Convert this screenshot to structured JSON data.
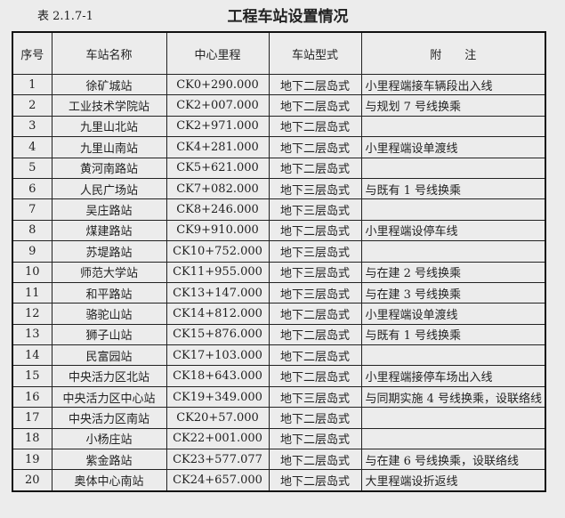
{
  "caption": "表 2.1.7-1",
  "title": "工程车站设置情况",
  "headers": [
    "序号",
    "车站名称",
    "中心里程",
    "车站型式",
    "附　　注"
  ],
  "rows": [
    [
      "1",
      "徐矿城站",
      "CK0+290.000",
      "地下二层岛式",
      "小里程端接车辆段出入线"
    ],
    [
      "2",
      "工业技术学院站",
      "CK2+007.000",
      "地下二层岛式",
      "与规划 7 号线换乘"
    ],
    [
      "3",
      "九里山北站",
      "CK2+971.000",
      "地下二层岛式",
      ""
    ],
    [
      "4",
      "九里山南站",
      "CK4+281.000",
      "地下二层岛式",
      "小里程端设单渡线"
    ],
    [
      "5",
      "黄河南路站",
      "CK5+621.000",
      "地下二层岛式",
      ""
    ],
    [
      "6",
      "人民广场站",
      "CK7+082.000",
      "地下三层岛式",
      "与既有 1 号线换乘"
    ],
    [
      "7",
      "吴庄路站",
      "CK8+246.000",
      "地下三层岛式",
      ""
    ],
    [
      "8",
      "煤建路站",
      "CK9+910.000",
      "地下二层岛式",
      "小里程端设停车线"
    ],
    [
      "9",
      "苏堤路站",
      "CK10+752.000",
      "地下三层岛式",
      ""
    ],
    [
      "10",
      "师范大学站",
      "CK11+955.000",
      "地下三层岛式",
      "与在建 2 号线换乘"
    ],
    [
      "11",
      "和平路站",
      "CK13+147.000",
      "地下三层岛式",
      "与在建 3 号线换乘"
    ],
    [
      "12",
      "骆驼山站",
      "CK14+812.000",
      "地下二层岛式",
      "小里程端设单渡线"
    ],
    [
      "13",
      "狮子山站",
      "CK15+876.000",
      "地下二层岛式",
      "与既有 1 号线换乘"
    ],
    [
      "14",
      "民富园站",
      "CK17+103.000",
      "地下二层岛式",
      ""
    ],
    [
      "15",
      "中央活力区北站",
      "CK18+643.000",
      "地下二层岛式",
      "小里程端接停车场出入线"
    ],
    [
      "16",
      "中央活力区中心站",
      "CK19+349.000",
      "地下三层岛式",
      "与同期实施 4 号线换乘，设联络线"
    ],
    [
      "17",
      "中央活力区南站",
      "CK20+57.000",
      "地下二层岛式",
      ""
    ],
    [
      "18",
      "小杨庄站",
      "CK22+001.000",
      "地下二层岛式",
      ""
    ],
    [
      "19",
      "紫金路站",
      "CK23+577.077",
      "地下二层岛式",
      "与在建 6 号线换乘，设联络线"
    ],
    [
      "20",
      "奥体中心南站",
      "CK24+657.000",
      "地下二层岛式",
      "大里程端设折返线"
    ]
  ]
}
